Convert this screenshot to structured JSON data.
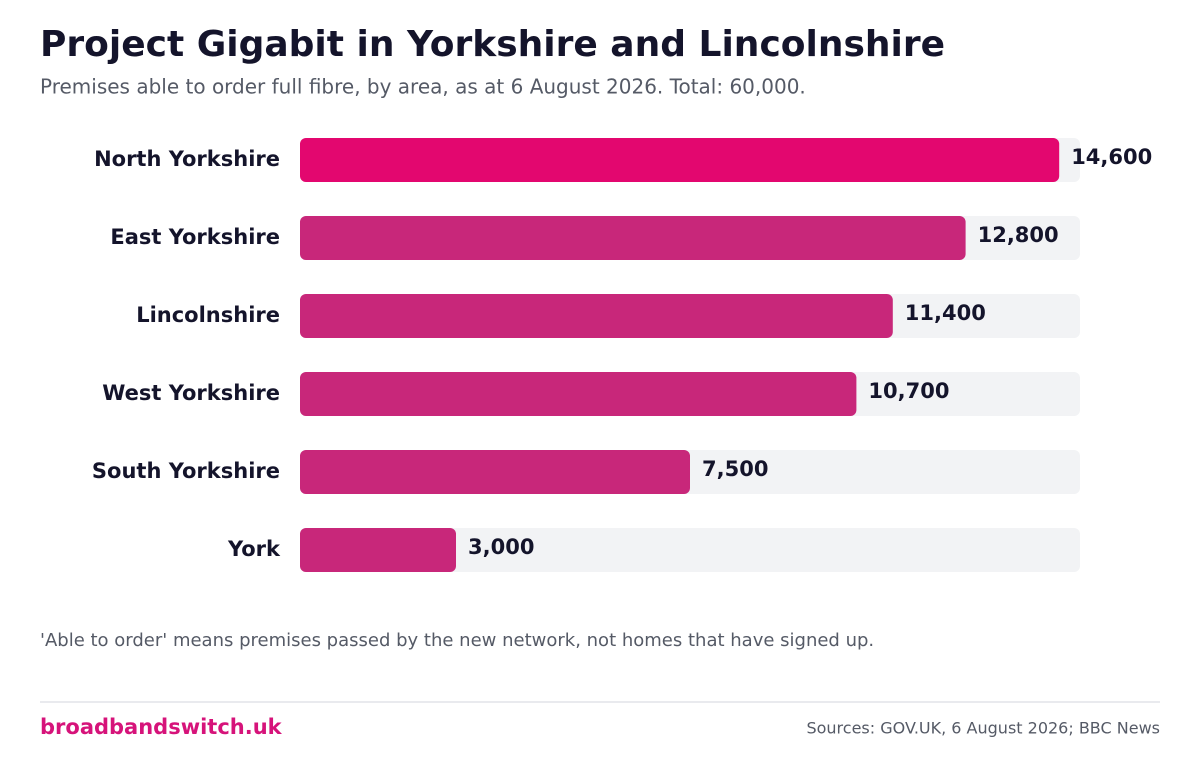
{
  "chart_data": {
    "type": "bar",
    "orientation": "horizontal",
    "title": "Project Gigabit in Yorkshire and Lincolnshire",
    "subtitle": "Premises able to order full fibre, by area, as at 6 August 2026.  Total: 60,000.",
    "categories": [
      "North Yorkshire",
      "East Yorkshire",
      "Lincolnshire",
      "West Yorkshire",
      "South Yorkshire",
      "York"
    ],
    "values": [
      14600,
      12800,
      11400,
      10700,
      7500,
      3000
    ],
    "value_labels": [
      "14,600",
      "12,800",
      "11,400",
      "10,700",
      "7,500",
      "3,000"
    ],
    "colors": [
      "#e3076f",
      "#c8277a",
      "#c8277a",
      "#c8277a",
      "#c8277a",
      "#c8277a"
    ],
    "xlim": [
      0,
      15000
    ],
    "note": "'Able to order' means premises passed by the new network, not homes that have signed up."
  },
  "footer": {
    "brand": "broadbandswitch.uk",
    "source": "Sources: GOV.UK, 6 August 2026; BBC News"
  }
}
